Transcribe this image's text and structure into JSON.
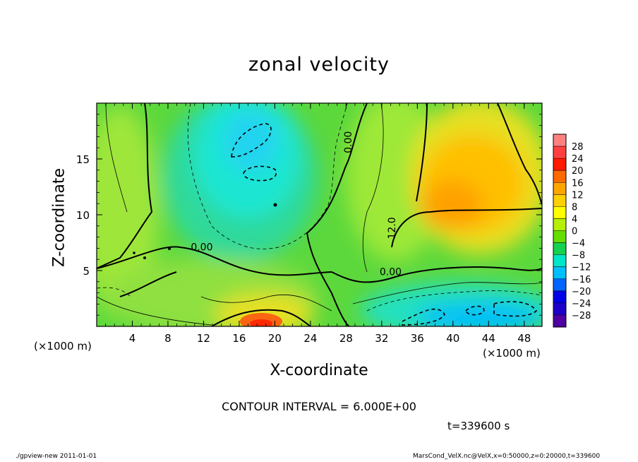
{
  "title": "zonal velocity",
  "chart_data": {
    "type": "heatmap",
    "title": "zonal velocity",
    "xlabel": "X-coordinate",
    "ylabel": "Z-coordinate",
    "x_unit": "(×1000 m)",
    "y_unit": "(×1000 m)",
    "xlim": [
      0,
      50
    ],
    "ylim": [
      0,
      20
    ],
    "x_ticks": [
      4,
      8,
      12,
      16,
      20,
      24,
      28,
      32,
      36,
      40,
      44,
      48
    ],
    "y_ticks": [
      5,
      10,
      15
    ],
    "colorbar_levels": [
      28,
      24,
      20,
      16,
      12,
      8,
      4,
      0,
      -4,
      -8,
      -12,
      -16,
      -20,
      -24,
      -28
    ],
    "colorbar_colors": [
      "#ff8080",
      "#ff4040",
      "#ff1a00",
      "#ff6a00",
      "#ffa500",
      "#ffd000",
      "#ffff00",
      "#b4f000",
      "#66dd00",
      "#14d250",
      "#00e6c8",
      "#00bfff",
      "#0064ff",
      "#0000e6",
      "#1e00c8",
      "#5000a0"
    ],
    "contour_labels": [
      {
        "text": "0.00",
        "x": 28.6,
        "y": 16.5
      },
      {
        "text": "0.00",
        "x": 11.8,
        "y": 6.8
      },
      {
        "text": "0.00",
        "x": 33.0,
        "y": 4.6
      },
      {
        "text": "12.0",
        "x": 33.5,
        "y": 8.8
      }
    ],
    "features": [
      {
        "name": "strong positive core",
        "x": 19,
        "z": 0.8,
        "value": 20
      },
      {
        "name": "positive upper-right region",
        "x": 40,
        "z": 11,
        "value": 16
      },
      {
        "name": "negative upper-center region",
        "x": 19,
        "z": 15,
        "value": -10
      },
      {
        "name": "negative lower-right region",
        "x": 42,
        "z": 1.5,
        "value": -16
      }
    ]
  },
  "xunit_left": "(×1000 m)",
  "xunit_right": "(×1000 m)",
  "contour_interval": "CONTOUR INTERVAL = 6.000E+00",
  "time_label": "t=339600 s",
  "footer_left": "./gpview-new   2011-01-01",
  "footer_right": "MarsCond_VelX.nc@VelX,x=0:50000,z=0:20000,t=339600"
}
